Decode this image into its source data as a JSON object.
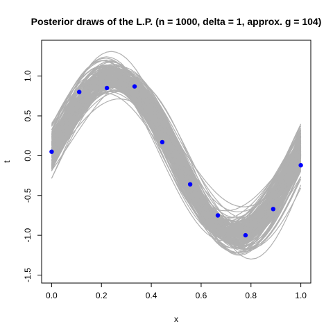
{
  "chart_data": {
    "type": "line",
    "title": "Posterior draws of the L.P. (n = 1000, delta = 1, approx. g = 104)",
    "xlabel": "x",
    "ylabel": "t",
    "xlim": [
      -0.04,
      1.04
    ],
    "ylim": [
      -1.6,
      1.45
    ],
    "x_ticks": [
      0.0,
      0.2,
      0.4,
      0.6,
      0.8,
      1.0
    ],
    "x_tick_labels": [
      "0.0",
      "0.2",
      "0.4",
      "0.6",
      "0.8",
      "1.0"
    ],
    "y_ticks": [
      -1.5,
      -1.0,
      -0.5,
      0.0,
      0.5,
      1.0
    ],
    "y_tick_labels": [
      "-1.5",
      "-1.0",
      "-0.5",
      "0.0",
      "0.5",
      "1.0"
    ],
    "grid": false,
    "legend": "none",
    "draw_count": 1000,
    "draw_color": "#b0b0b0",
    "point_color": "#0000ff",
    "points": {
      "x": [
        0.0,
        0.111,
        0.222,
        0.333,
        0.444,
        0.556,
        0.667,
        0.778,
        0.889,
        1.0
      ],
      "y": [
        0.05,
        0.8,
        0.85,
        0.87,
        0.17,
        -0.36,
        -0.75,
        -1.0,
        -0.67,
        -0.12
      ]
    }
  }
}
